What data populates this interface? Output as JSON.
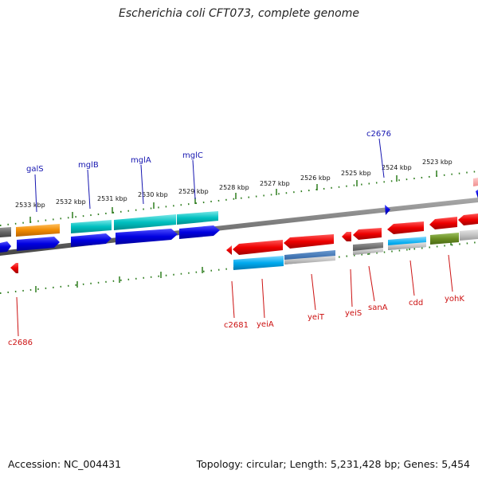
{
  "title": "Escherichia coli CFT073, complete genome",
  "footer": {
    "accession": "Accession: NC_004431",
    "topology": "Topology: circular; Length: 5,231,428 bp; Genes: 5,454"
  },
  "scale": {
    "ticks": [
      {
        "label": "2533 kbp"
      },
      {
        "label": "2532 kbp"
      },
      {
        "label": "2531 kbp"
      },
      {
        "label": "2530 kbp"
      },
      {
        "label": "2529 kbp"
      },
      {
        "label": "2528 kbp"
      },
      {
        "label": "2527 kbp"
      },
      {
        "label": "2526 kbp"
      },
      {
        "label": "2525 kbp"
      },
      {
        "label": "2524 kbp"
      },
      {
        "label": "2523 kbp"
      }
    ]
  },
  "genes_top": [
    {
      "label": "galS"
    },
    {
      "label": "mglB"
    },
    {
      "label": "mglA"
    },
    {
      "label": "mglC"
    },
    {
      "label": "c2676"
    }
  ],
  "genes_bottom": [
    {
      "label": "c2686"
    },
    {
      "label": "c2681"
    },
    {
      "label": "yeiA"
    },
    {
      "label": "yeiT"
    },
    {
      "label": "yeiS"
    },
    {
      "label": "sanA"
    },
    {
      "label": "cdd"
    },
    {
      "label": "yohK"
    }
  ],
  "colors": {
    "forward": "#0000ee",
    "reverse": "#ee0000",
    "orange": "#f08a00",
    "teal": "#00c0c0",
    "sky": "#00aaee",
    "gray": "#666666",
    "olive": "#6b8e23",
    "tick": "#2e7d1e",
    "backbone": "#777777"
  }
}
